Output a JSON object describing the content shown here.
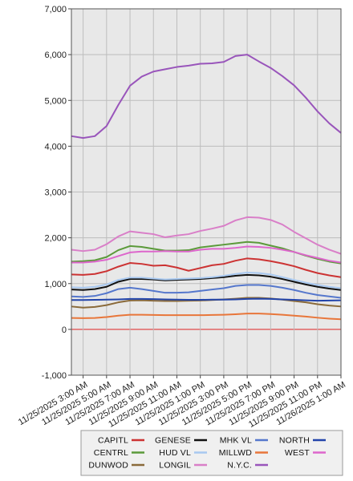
{
  "chart_data": {
    "type": "line",
    "title": "",
    "xlabel": "",
    "ylabel": "",
    "ylim": [
      -1000,
      7000
    ],
    "yticks": [
      -1000,
      0,
      1000,
      2000,
      3000,
      4000,
      5000,
      6000,
      7000
    ],
    "ytick_labels": [
      "-1,000",
      "0",
      "1,000",
      "2,000",
      "3,000",
      "4,000",
      "5,000",
      "6,000",
      "7,000"
    ],
    "x_start_hour": 2,
    "x_end_hour": 25,
    "xticks": [
      {
        "hour": 3,
        "label": "11/25/2025 3:00 AM"
      },
      {
        "hour": 5,
        "label": "11/25/2025 5:00 AM"
      },
      {
        "hour": 7,
        "label": "11/25/2025 7:00 AM"
      },
      {
        "hour": 9,
        "label": "11/25/2025 9:00 AM"
      },
      {
        "hour": 11,
        "label": "11/25/2025 11:00 AM"
      },
      {
        "hour": 13,
        "label": "11/25/2025 1:00 PM"
      },
      {
        "hour": 15,
        "label": "11/25/2025 3:00 PM"
      },
      {
        "hour": 17,
        "label": "11/25/2025 5:00 PM"
      },
      {
        "hour": 19,
        "label": "11/25/2025 7:00 PM"
      },
      {
        "hour": 21,
        "label": "11/25/2025 9:00 PM"
      },
      {
        "hour": 23,
        "label": "11/25/2025 11:00 PM"
      },
      {
        "hour": 25,
        "label": "11/26/2025 1:00 AM"
      }
    ],
    "grid": true,
    "legend_position": "bottom",
    "x": [
      2,
      3,
      4,
      5,
      6,
      7,
      8,
      9,
      10,
      11,
      12,
      13,
      14,
      15,
      16,
      17,
      18,
      19,
      20,
      21,
      22,
      23,
      24,
      25
    ],
    "series": [
      {
        "name": "CAPITL",
        "color": "#cc3333",
        "values": [
          1200,
          1190,
          1210,
          1270,
          1370,
          1450,
          1430,
          1390,
          1400,
          1350,
          1280,
          1340,
          1400,
          1430,
          1500,
          1550,
          1530,
          1490,
          1440,
          1380,
          1300,
          1230,
          1180,
          1140
        ]
      },
      {
        "name": "CENTRL",
        "color": "#5b9a3a",
        "values": [
          1480,
          1490,
          1510,
          1580,
          1730,
          1820,
          1800,
          1760,
          1720,
          1720,
          1730,
          1790,
          1820,
          1850,
          1880,
          1910,
          1890,
          1830,
          1770,
          1690,
          1610,
          1540,
          1480,
          1440
        ]
      },
      {
        "name": "DUNWOD",
        "color": "#8a6a3a",
        "values": [
          500,
          475,
          490,
          530,
          590,
          630,
          635,
          625,
          620,
          620,
          625,
          630,
          640,
          655,
          670,
          690,
          690,
          675,
          650,
          620,
          590,
          550,
          520,
          500
        ]
      },
      {
        "name": "GENESE",
        "color": "#111111",
        "values": [
          870,
          860,
          880,
          930,
          1040,
          1100,
          1100,
          1090,
          1070,
          1080,
          1090,
          1100,
          1120,
          1140,
          1170,
          1190,
          1180,
          1150,
          1100,
          1040,
          980,
          930,
          890,
          860
        ]
      },
      {
        "name": "HUD VL",
        "color": "#a8c8f0",
        "values": [
          920,
          910,
          930,
          980,
          1080,
          1130,
          1130,
          1110,
          1090,
          1100,
          1110,
          1120,
          1140,
          1170,
          1210,
          1240,
          1230,
          1200,
          1140,
          1080,
          1020,
          970,
          930,
          900
        ]
      },
      {
        "name": "LONGIL",
        "color": "#d97fc8",
        "values": [
          1740,
          1710,
          1740,
          1860,
          2030,
          2140,
          2110,
          2080,
          2010,
          2050,
          2080,
          2150,
          2200,
          2260,
          2380,
          2450,
          2440,
          2390,
          2290,
          2130,
          1990,
          1850,
          1740,
          1650
        ]
      },
      {
        "name": "MHK VL",
        "color": "#5577cc",
        "values": [
          720,
          710,
          730,
          790,
          880,
          910,
          880,
          840,
          800,
          800,
          810,
          840,
          870,
          900,
          950,
          970,
          970,
          950,
          910,
          860,
          800,
          750,
          720,
          690
        ]
      },
      {
        "name": "MILLWD",
        "color": "#e8763a",
        "values": [
          250,
          245,
          250,
          270,
          300,
          320,
          320,
          315,
          310,
          310,
          310,
          310,
          315,
          320,
          330,
          345,
          345,
          335,
          320,
          300,
          280,
          255,
          235,
          220
        ]
      },
      {
        "name": "N.Y.C.",
        "color": "#9955bb",
        "values": [
          4220,
          4180,
          4220,
          4440,
          4900,
          5320,
          5520,
          5630,
          5680,
          5730,
          5760,
          5800,
          5810,
          5840,
          5970,
          6000,
          5850,
          5710,
          5530,
          5330,
          5060,
          4760,
          4500,
          4290
        ]
      },
      {
        "name": "NORTH",
        "color": "#2244aa",
        "values": [
          640,
          640,
          645,
          650,
          655,
          665,
          665,
          660,
          655,
          650,
          645,
          645,
          650,
          650,
          655,
          665,
          670,
          665,
          655,
          645,
          635,
          625,
          630,
          635
        ]
      },
      {
        "name": "WEST",
        "color": "#dd66cc",
        "values": [
          1460,
          1460,
          1480,
          1520,
          1600,
          1680,
          1700,
          1700,
          1710,
          1700,
          1700,
          1740,
          1760,
          1760,
          1780,
          1810,
          1800,
          1780,
          1740,
          1690,
          1620,
          1560,
          1500,
          1460
        ]
      }
    ],
    "legend_columns": [
      [
        "CAPITL",
        "CENTRL",
        "DUNWOD"
      ],
      [
        "GENESE",
        "HUD VL",
        "LONGIL"
      ],
      [
        "MHK VL",
        "MILLWD",
        "N.Y.C."
      ],
      [
        "NORTH",
        "WEST"
      ]
    ],
    "plot_background": "#e8e8e8",
    "zero_line_color": "#dd2222"
  }
}
